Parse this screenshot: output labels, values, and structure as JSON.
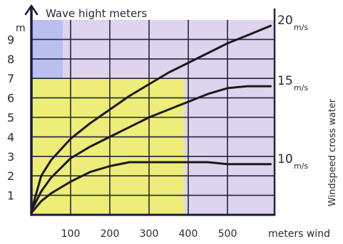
{
  "chart_data": {
    "type": "line",
    "title": "",
    "ylabel": "Wave hight meters",
    "y_unit_mark": "m",
    "xlabel": "meters wind",
    "right_label": "Windspeed cross water",
    "xlim": [
      0,
      620
    ],
    "ylim": [
      0,
      10
    ],
    "x_ticks": [
      100,
      200,
      300,
      400,
      500
    ],
    "y_ticks": [
      1,
      2,
      3,
      4,
      5,
      6,
      7,
      8,
      9
    ],
    "grid": true,
    "series": [
      {
        "name": "20m/s",
        "label_value": "20",
        "label_unit": "m/s",
        "x": [
          0,
          25,
          50,
          100,
          150,
          200,
          250,
          300,
          350,
          400,
          450,
          500,
          550,
          610
        ],
        "y": [
          0.2,
          2.0,
          2.8,
          3.9,
          4.7,
          5.4,
          6.1,
          6.7,
          7.3,
          7.8,
          8.3,
          8.8,
          9.2,
          9.7
        ]
      },
      {
        "name": "15m/s",
        "label_value": "15",
        "label_unit": "m/s",
        "x": [
          0,
          25,
          50,
          100,
          150,
          200,
          250,
          300,
          350,
          400,
          450,
          500,
          550,
          610
        ],
        "y": [
          0.2,
          1.2,
          1.9,
          2.9,
          3.5,
          4.0,
          4.5,
          5.0,
          5.4,
          5.8,
          6.2,
          6.5,
          6.6,
          6.6
        ]
      },
      {
        "name": "10m/s",
        "label_value": "10",
        "label_unit": "m/s",
        "x": [
          0,
          25,
          50,
          100,
          150,
          200,
          250,
          300,
          350,
          400,
          450,
          500,
          550,
          610
        ],
        "y": [
          0.1,
          0.7,
          1.1,
          1.7,
          2.2,
          2.5,
          2.7,
          2.7,
          2.7,
          2.7,
          2.7,
          2.6,
          2.6,
          2.6
        ]
      }
    ],
    "colors": {
      "grid": "#25253a",
      "curve": "#1a1a1a",
      "yellow": "#eef06a",
      "lavender": "#d8ccea",
      "blue_fill": "#b9bfee",
      "text": "#2a2a3a"
    }
  }
}
